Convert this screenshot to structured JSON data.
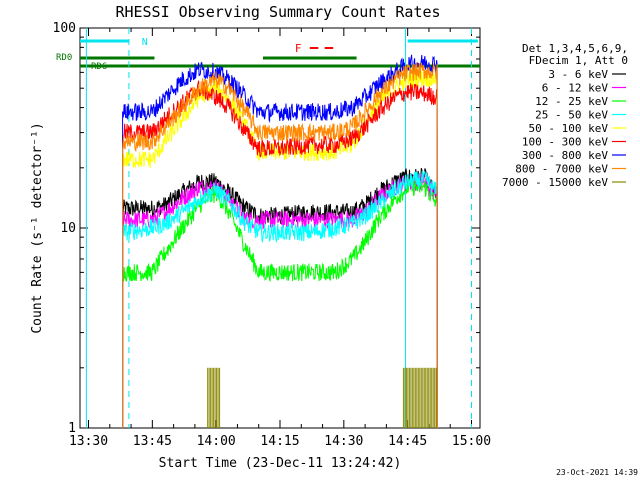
{
  "chart_data": {
    "type": "line",
    "title": "RHESSI Observing Summary Count Rates",
    "xlabel": "Start Time (23-Dec-11 13:24:42)",
    "ylabel": "Count Rate (s⁻¹ detector⁻¹)",
    "ylog": true,
    "ylim": [
      1,
      100
    ],
    "xlim_minutes_after_1330": [
      -2,
      92
    ],
    "x_ticks": [
      "13:30",
      "13:45",
      "14:00",
      "14:15",
      "14:30",
      "14:45",
      "15:00"
    ],
    "x_tick_minutes": [
      0,
      15,
      30,
      45,
      60,
      75,
      90
    ],
    "y_ticks": [
      "1",
      "10",
      "100"
    ],
    "y_tick_values": [
      1,
      10,
      100
    ],
    "legend_header": [
      "Det 1,3,4,5,6,9,",
      "FDecim 1, Att 0"
    ],
    "legend_placement": "right",
    "timestamp": "23-Oct-2021 14:39",
    "flags": {
      "night_label": "N",
      "flare_label": "F",
      "rd0_label": "RD0",
      "rd6_label": "RD6"
    },
    "x_unit": "minutes after 13:30",
    "series": [
      {
        "name": "3 - 6 keV",
        "color": "#000000",
        "points": [
          [
            8,
            12.5
          ],
          [
            15,
            12.5
          ],
          [
            18,
            13
          ],
          [
            22,
            15
          ],
          [
            26,
            17
          ],
          [
            30,
            17
          ],
          [
            33,
            15
          ],
          [
            37,
            12.5
          ],
          [
            40,
            11.5
          ],
          [
            45,
            11.5
          ],
          [
            52,
            12
          ],
          [
            58,
            12
          ],
          [
            62,
            12
          ],
          [
            65,
            13
          ],
          [
            68,
            15
          ],
          [
            72,
            17
          ],
          [
            75,
            18
          ],
          [
            79,
            18
          ],
          [
            82,
            14
          ]
        ]
      },
      {
        "name": "6 - 12 keV",
        "color": "#ff00ff",
        "points": [
          [
            8,
            11
          ],
          [
            15,
            11
          ],
          [
            18,
            12
          ],
          [
            22,
            14
          ],
          [
            26,
            16
          ],
          [
            30,
            16
          ],
          [
            33,
            14
          ],
          [
            37,
            11
          ],
          [
            40,
            11
          ],
          [
            45,
            11
          ],
          [
            52,
            11
          ],
          [
            58,
            11
          ],
          [
            62,
            11
          ],
          [
            65,
            12
          ],
          [
            68,
            14
          ],
          [
            72,
            16
          ],
          [
            75,
            17
          ],
          [
            79,
            17
          ],
          [
            82,
            14
          ]
        ]
      },
      {
        "name": "12 - 25 keV",
        "color": "#00ff00",
        "points": [
          [
            8,
            6
          ],
          [
            15,
            6
          ],
          [
            18,
            7.5
          ],
          [
            22,
            10
          ],
          [
            26,
            13
          ],
          [
            30,
            15
          ],
          [
            33,
            12
          ],
          [
            37,
            8
          ],
          [
            40,
            6
          ],
          [
            45,
            6
          ],
          [
            52,
            6
          ],
          [
            58,
            6
          ],
          [
            62,
            7
          ],
          [
            65,
            8.5
          ],
          [
            68,
            11
          ],
          [
            72,
            14
          ],
          [
            75,
            16
          ],
          [
            79,
            16
          ],
          [
            82,
            13
          ]
        ]
      },
      {
        "name": "25 - 50 keV",
        "color": "#00ffff",
        "points": [
          [
            8,
            9.5
          ],
          [
            15,
            10
          ],
          [
            18,
            10.5
          ],
          [
            22,
            12
          ],
          [
            26,
            14
          ],
          [
            30,
            15.5
          ],
          [
            33,
            13.5
          ],
          [
            37,
            10.5
          ],
          [
            40,
            9.5
          ],
          [
            45,
            9.5
          ],
          [
            52,
            9.5
          ],
          [
            58,
            10
          ],
          [
            62,
            10.5
          ],
          [
            65,
            11.5
          ],
          [
            68,
            13
          ],
          [
            72,
            15.5
          ],
          [
            75,
            17
          ],
          [
            79,
            17.5
          ],
          [
            82,
            15
          ]
        ]
      },
      {
        "name": "50 - 100 keV",
        "color": "#ffff00",
        "points": [
          [
            8,
            22
          ],
          [
            15,
            22
          ],
          [
            18,
            27
          ],
          [
            22,
            35
          ],
          [
            26,
            45
          ],
          [
            30,
            50
          ],
          [
            33,
            44
          ],
          [
            37,
            32
          ],
          [
            40,
            24
          ],
          [
            45,
            24
          ],
          [
            52,
            24
          ],
          [
            58,
            24
          ],
          [
            62,
            26
          ],
          [
            65,
            33
          ],
          [
            68,
            42
          ],
          [
            72,
            50
          ],
          [
            75,
            55
          ],
          [
            79,
            56
          ],
          [
            82,
            56
          ]
        ]
      },
      {
        "name": "100 - 300 keV",
        "color": "#ff0000",
        "points": [
          [
            8,
            30
          ],
          [
            15,
            30
          ],
          [
            18,
            35
          ],
          [
            22,
            42
          ],
          [
            26,
            50
          ],
          [
            30,
            45
          ],
          [
            33,
            40
          ],
          [
            37,
            30
          ],
          [
            40,
            25
          ],
          [
            45,
            25
          ],
          [
            52,
            26
          ],
          [
            58,
            26
          ],
          [
            62,
            28
          ],
          [
            65,
            32
          ],
          [
            68,
            38
          ],
          [
            72,
            45
          ],
          [
            75,
            48
          ],
          [
            79,
            47
          ],
          [
            82,
            45
          ]
        ]
      },
      {
        "name": "300 - 800 keV",
        "color": "#0000ff",
        "points": [
          [
            8,
            38
          ],
          [
            15,
            38
          ],
          [
            18,
            45
          ],
          [
            22,
            55
          ],
          [
            26,
            62
          ],
          [
            30,
            60
          ],
          [
            33,
            55
          ],
          [
            37,
            45
          ],
          [
            40,
            38
          ],
          [
            45,
            38
          ],
          [
            52,
            38
          ],
          [
            58,
            38
          ],
          [
            62,
            40
          ],
          [
            65,
            45
          ],
          [
            68,
            52
          ],
          [
            72,
            60
          ],
          [
            75,
            66
          ],
          [
            79,
            67
          ],
          [
            82,
            66
          ]
        ]
      },
      {
        "name": "800 - 7000 keV",
        "color": "#ff8800",
        "points": [
          [
            8,
            27
          ],
          [
            15,
            27
          ],
          [
            18,
            32
          ],
          [
            22,
            40
          ],
          [
            26,
            50
          ],
          [
            30,
            55
          ],
          [
            33,
            50
          ],
          [
            37,
            38
          ],
          [
            40,
            30
          ],
          [
            45,
            30
          ],
          [
            52,
            30
          ],
          [
            58,
            30
          ],
          [
            62,
            32
          ],
          [
            65,
            38
          ],
          [
            68,
            46
          ],
          [
            72,
            55
          ],
          [
            75,
            60
          ],
          [
            79,
            61
          ],
          [
            82,
            60
          ]
        ]
      },
      {
        "name": "7000 - 15000 keV",
        "color": "#888800",
        "points": [
          [
            28,
            2
          ],
          [
            31,
            2
          ],
          [
            74,
            2
          ],
          [
            82,
            2
          ]
        ]
      }
    ]
  }
}
